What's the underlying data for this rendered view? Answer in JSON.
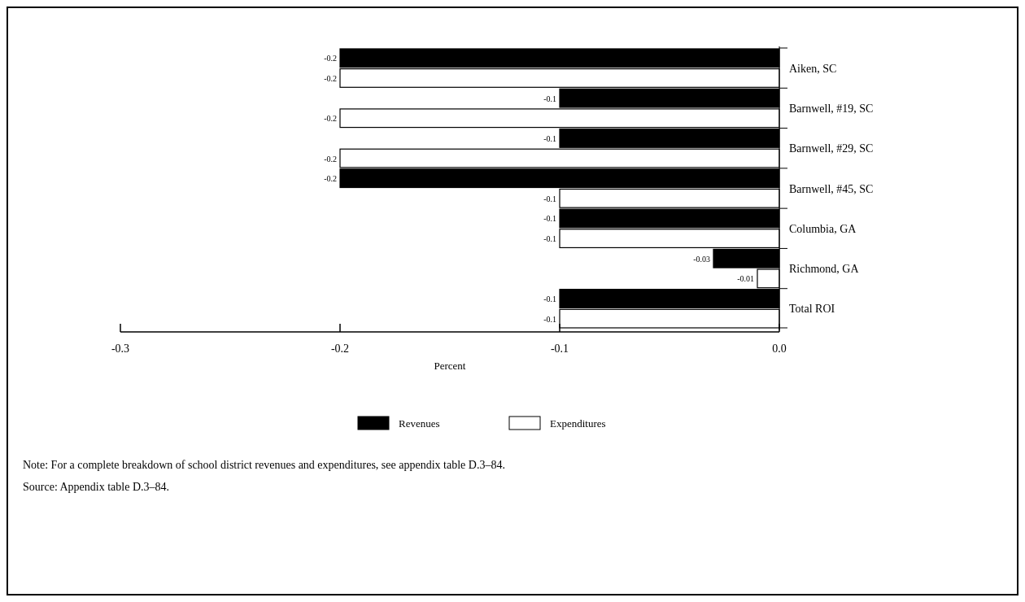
{
  "chart_data": {
    "type": "bar",
    "orientation": "horizontal",
    "categories": [
      "Aiken, SC",
      "Barnwell, #19, SC",
      "Barnwell, #29, SC",
      "Barnwell, #45, SC",
      "Columbia, GA",
      "Richmond, GA",
      "Total ROI"
    ],
    "series": [
      {
        "name": "Revenues",
        "color": "#000000",
        "values": [
          -0.2,
          -0.1,
          -0.1,
          -0.2,
          -0.1,
          -0.03,
          -0.1
        ]
      },
      {
        "name": "Expenditures",
        "color": "#ffffff",
        "values": [
          -0.2,
          -0.2,
          -0.2,
          -0.1,
          -0.1,
          -0.01,
          -0.1
        ]
      }
    ],
    "xlim": [
      -0.3,
      0
    ],
    "xticks": [
      -0.3,
      -0.2,
      -0.1,
      {
        "value": 0,
        "label": "0.0"
      }
    ],
    "xlabel": "Percent",
    "data_labels": true,
    "legend": "bottom",
    "annotations": [
      "Note: For a complete breakdown of school district revenues and expenditures, see appendix table D.3–84.",
      "Source: Appendix table D.3–84."
    ]
  }
}
